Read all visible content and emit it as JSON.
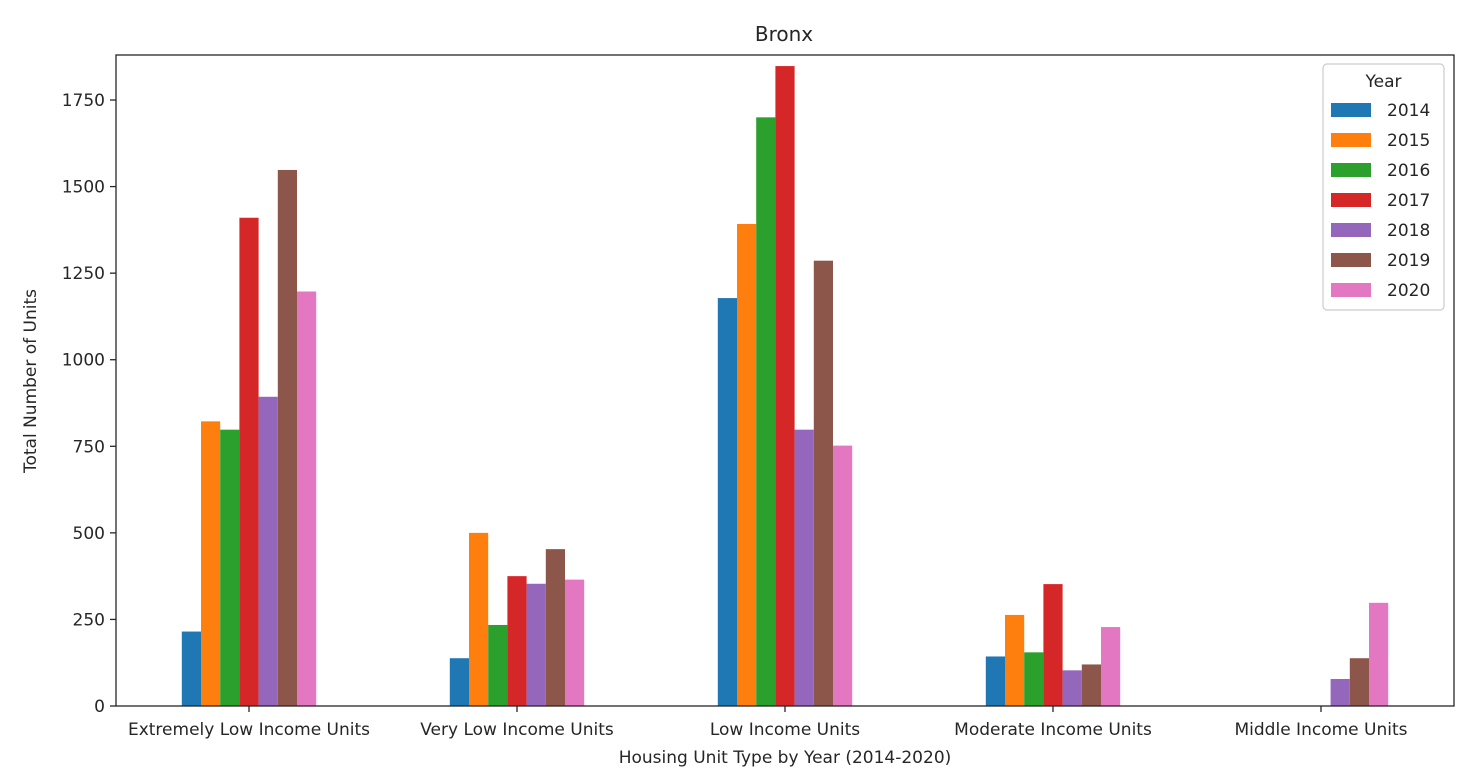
{
  "chart_data": {
    "type": "bar",
    "title": "Bronx",
    "xlabel": "Housing Unit Type by Year (2014-2020)",
    "ylabel": "Total Number of Units",
    "ylim": [
      0,
      1880
    ],
    "yticks": [
      0,
      250,
      500,
      750,
      1000,
      1250,
      1500,
      1750
    ],
    "grid": false,
    "legend": {
      "title": "Year",
      "placement": "top-right"
    },
    "categories": [
      "Extremely Low Income Units",
      "Very Low Income Units",
      "Low Income Units",
      "Moderate Income Units",
      "Middle Income Units"
    ],
    "series": [
      {
        "name": "2014",
        "color": "#1f77b4",
        "values": [
          215,
          138,
          1178,
          143,
          0
        ]
      },
      {
        "name": "2015",
        "color": "#ff7f0e",
        "values": [
          822,
          500,
          1392,
          263,
          0
        ]
      },
      {
        "name": "2016",
        "color": "#2ca02c",
        "values": [
          798,
          234,
          1700,
          155,
          0
        ]
      },
      {
        "name": "2017",
        "color": "#d62728",
        "values": [
          1410,
          375,
          1848,
          352,
          0
        ]
      },
      {
        "name": "2018",
        "color": "#9467bd",
        "values": [
          893,
          353,
          798,
          103,
          78
        ]
      },
      {
        "name": "2019",
        "color": "#8c564b",
        "values": [
          1548,
          453,
          1286,
          120,
          138
        ]
      },
      {
        "name": "2020",
        "color": "#e377c2",
        "values": [
          1197,
          365,
          752,
          228,
          298
        ]
      }
    ]
  }
}
